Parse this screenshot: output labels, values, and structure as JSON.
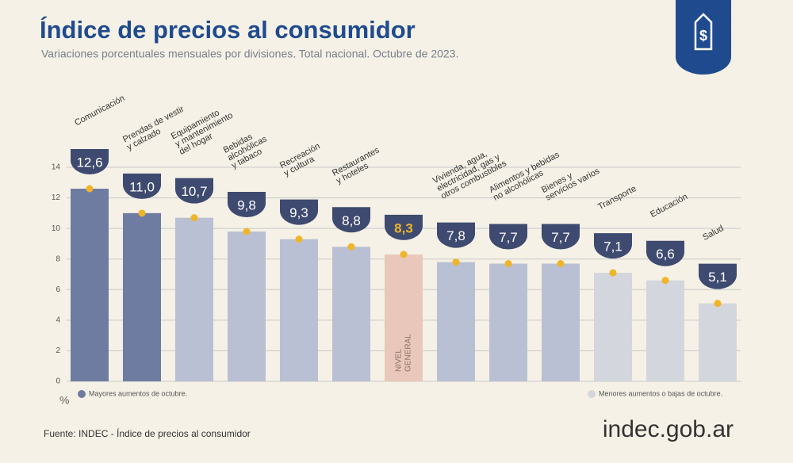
{
  "chart_data": {
    "type": "bar",
    "title": "Índice de precios al consumidor",
    "subtitle": "Variaciones porcentuales mensuales por divisiones. Total nacional. Octubre de 2023.",
    "y_unit": "%",
    "categories": [
      [
        "Comunicación"
      ],
      [
        "Prendas de vestir",
        "y calzado"
      ],
      [
        "Equipamiento",
        "y mantenimiento",
        "del hogar"
      ],
      [
        "Bebidas",
        "alcohólicas",
        "y tabaco"
      ],
      [
        "Recreación",
        "y cultura"
      ],
      [
        "Restaurantes",
        "y hoteles"
      ],
      [
        "NIVEL",
        "GENERAL"
      ],
      [
        "Vivienda, agua,",
        "electricidad, gas y",
        "otros combustibles"
      ],
      [
        "Alimentos y bebidas",
        "no alcohólicas"
      ],
      [
        "Bienes y",
        "servicios varios"
      ],
      [
        "Transporte"
      ],
      [
        "Educación"
      ],
      [
        "Salud"
      ]
    ],
    "values": [
      12.6,
      11.0,
      10.7,
      9.8,
      9.3,
      8.8,
      8.3,
      7.8,
      7.7,
      7.7,
      7.1,
      6.6,
      5.1
    ],
    "value_labels": [
      "12,6",
      "11,0",
      "10,7",
      "9,8",
      "9,3",
      "8,8",
      "8,3",
      "7,8",
      "7,7",
      "7,7",
      "7,1",
      "6,6",
      "5,1"
    ],
    "colors": [
      "#6e7ca1",
      "#6e7ca1",
      "#b9c0d3",
      "#b9c0d3",
      "#b9c0d3",
      "#b9c0d3",
      "#e9c8bb",
      "#b9c0d3",
      "#b9c0d3",
      "#b9c0d3",
      "#d3d6dd",
      "#d3d6dd",
      "#d3d6dd"
    ],
    "reference_index": 6,
    "ylim": [
      0,
      14
    ],
    "yticks": [
      0,
      2,
      4,
      6,
      8,
      10,
      12,
      14
    ],
    "grid": true,
    "legend": [
      {
        "label": "Mayores aumentos de octubre.",
        "color": "#6e7ca1"
      },
      {
        "label": "Menores aumentos o bajas de octubre.",
        "color": "#d3d6dd"
      }
    ],
    "source": "Fuente: INDEC - Índice de precios al consumidor",
    "logo": "indec.gob.ar"
  }
}
